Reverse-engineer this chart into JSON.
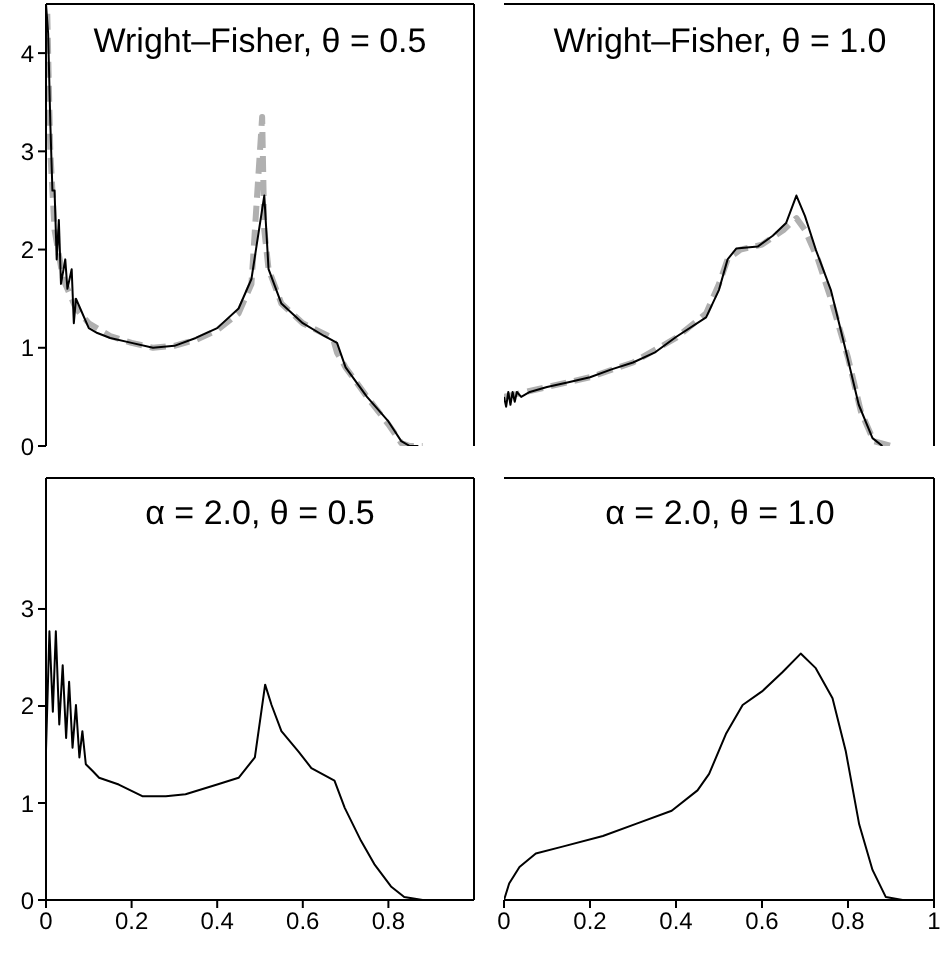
{
  "chart_data": [
    {
      "type": "line",
      "title": "Wright–Fisher, θ = 0.5",
      "xlim": [
        0,
        1
      ],
      "ylim": [
        0,
        4.5
      ],
      "yticks": [
        0,
        1,
        2,
        3,
        4
      ],
      "tick_labels": "y",
      "marker": "none",
      "series": [
        {
          "color": "#000000",
          "line_style": "solid",
          "x": [
            0,
            0.005,
            0.01,
            0.015,
            0.02,
            0.025,
            0.03,
            0.035,
            0.045,
            0.05,
            0.06,
            0.065,
            0.07,
            0.08,
            0.1,
            0.12,
            0.15,
            0.2,
            0.25,
            0.3,
            0.35,
            0.4,
            0.45,
            0.48,
            0.51,
            0.52,
            0.55,
            0.6,
            0.65,
            0.68,
            0.7,
            0.75,
            0.8,
            0.83,
            0.85,
            0.87
          ],
          "values": [
            4.5,
            4.2,
            3.3,
            2.6,
            2.6,
            1.9,
            2.3,
            1.65,
            1.9,
            1.6,
            1.8,
            1.25,
            1.5,
            1.4,
            1.2,
            1.15,
            1.1,
            1.05,
            1.0,
            1.02,
            1.1,
            1.2,
            1.4,
            1.7,
            2.55,
            1.8,
            1.45,
            1.25,
            1.12,
            1.05,
            0.8,
            0.5,
            0.25,
            0.05,
            0,
            0
          ]
        },
        {
          "color": "#b0b0b0",
          "line_style": "dashed",
          "x": [
            0.003,
            0.01,
            0.02,
            0.04,
            0.07,
            0.1,
            0.15,
            0.2,
            0.25,
            0.3,
            0.35,
            0.4,
            0.45,
            0.48,
            0.505,
            0.51,
            0.52,
            0.55,
            0.6,
            0.66,
            0.67,
            0.68,
            0.7,
            0.75,
            0.8,
            0.83,
            0.85,
            0.88
          ],
          "values": [
            4.4,
            3.0,
            2.2,
            1.7,
            1.4,
            1.25,
            1.12,
            1.05,
            1.0,
            1.02,
            1.08,
            1.18,
            1.35,
            1.65,
            3.35,
            2.2,
            1.8,
            1.45,
            1.25,
            1.12,
            1.1,
            0.95,
            0.8,
            0.5,
            0.22,
            0.03,
            0,
            0
          ]
        }
      ]
    },
    {
      "type": "line",
      "title": "Wright–Fisher, θ = 1.0",
      "xlim": [
        0,
        1
      ],
      "ylim": [
        0,
        4.5
      ],
      "tick_labels": false,
      "marker": "none",
      "series": [
        {
          "color": "#000000",
          "line_style": "solid",
          "x": [
            0,
            0.005,
            0.01,
            0.015,
            0.02,
            0.025,
            0.03,
            0.04,
            0.06,
            0.1,
            0.15,
            0.2,
            0.25,
            0.3,
            0.35,
            0.4,
            0.47,
            0.5,
            0.52,
            0.54,
            0.59,
            0.625,
            0.656,
            0.68,
            0.7,
            0.725,
            0.76,
            0.795,
            0.825,
            0.857,
            0.88
          ],
          "values": [
            0.5,
            0.4,
            0.55,
            0.42,
            0.55,
            0.45,
            0.55,
            0.5,
            0.55,
            0.6,
            0.65,
            0.7,
            0.78,
            0.85,
            0.95,
            1.11,
            1.31,
            1.59,
            1.9,
            2.01,
            2.03,
            2.14,
            2.27,
            2.55,
            2.34,
            2.0,
            1.59,
            0.97,
            0.42,
            0.08,
            0
          ]
        },
        {
          "color": "#b0b0b0",
          "line_style": "dashed",
          "x": [
            0,
            0.1,
            0.2,
            0.3,
            0.4,
            0.47,
            0.5,
            0.52,
            0.55,
            0.6,
            0.65,
            0.68,
            0.7,
            0.73,
            0.76,
            0.8,
            0.83,
            0.86,
            0.9
          ],
          "values": [
            0.5,
            0.6,
            0.7,
            0.85,
            1.1,
            1.35,
            1.65,
            1.9,
            2.0,
            2.05,
            2.2,
            2.32,
            2.2,
            1.9,
            1.5,
            0.9,
            0.35,
            0.05,
            0
          ]
        }
      ]
    },
    {
      "type": "line",
      "title": "α = 2.0, θ = 0.5",
      "xlim": [
        0,
        1
      ],
      "ylim": [
        0,
        4.35
      ],
      "xticks": [
        0,
        0.2,
        0.4,
        0.6,
        0.8
      ],
      "yticks": [
        0,
        1,
        2,
        3
      ],
      "marker": "none",
      "series": [
        {
          "color": "#000000",
          "line_style": "solid",
          "x": [
            0,
            0.008,
            0.016,
            0.023,
            0.031,
            0.039,
            0.047,
            0.054,
            0.062,
            0.07,
            0.078,
            0.085,
            0.093,
            0.109,
            0.124,
            0.17,
            0.225,
            0.28,
            0.326,
            0.4,
            0.45,
            0.488,
            0.512,
            0.527,
            0.55,
            0.59,
            0.62,
            0.674,
            0.698,
            0.736,
            0.767,
            0.806,
            0.837,
            0.88
          ],
          "values": [
            1.54,
            2.77,
            1.94,
            2.77,
            1.81,
            2.42,
            1.67,
            2.25,
            1.57,
            2.01,
            1.47,
            1.74,
            1.4,
            1.33,
            1.26,
            1.19,
            1.07,
            1.07,
            1.09,
            1.19,
            1.26,
            1.47,
            2.22,
            2.01,
            1.74,
            1.53,
            1.36,
            1.23,
            0.95,
            0.61,
            0.37,
            0.14,
            0.03,
            0
          ]
        }
      ]
    },
    {
      "type": "line",
      "title": "α = 2.0, θ = 1.0",
      "xlim": [
        0,
        1
      ],
      "ylim": [
        0,
        4.35
      ],
      "xticks": [
        0,
        0.2,
        0.4,
        0.6,
        0.8,
        1
      ],
      "tick_labels": "x",
      "marker": "none",
      "series": [
        {
          "color": "#000000",
          "line_style": "solid",
          "x": [
            0,
            0.012,
            0.036,
            0.074,
            0.136,
            0.23,
            0.31,
            0.39,
            0.45,
            0.477,
            0.516,
            0.555,
            0.6,
            0.648,
            0.69,
            0.725,
            0.764,
            0.795,
            0.826,
            0.857,
            0.888,
            0.927
          ],
          "values": [
            0,
            0.17,
            0.34,
            0.48,
            0.55,
            0.66,
            0.79,
            0.92,
            1.13,
            1.3,
            1.71,
            2.01,
            2.15,
            2.35,
            2.54,
            2.39,
            2.08,
            1.53,
            0.78,
            0.31,
            0.03,
            0
          ]
        }
      ]
    }
  ]
}
